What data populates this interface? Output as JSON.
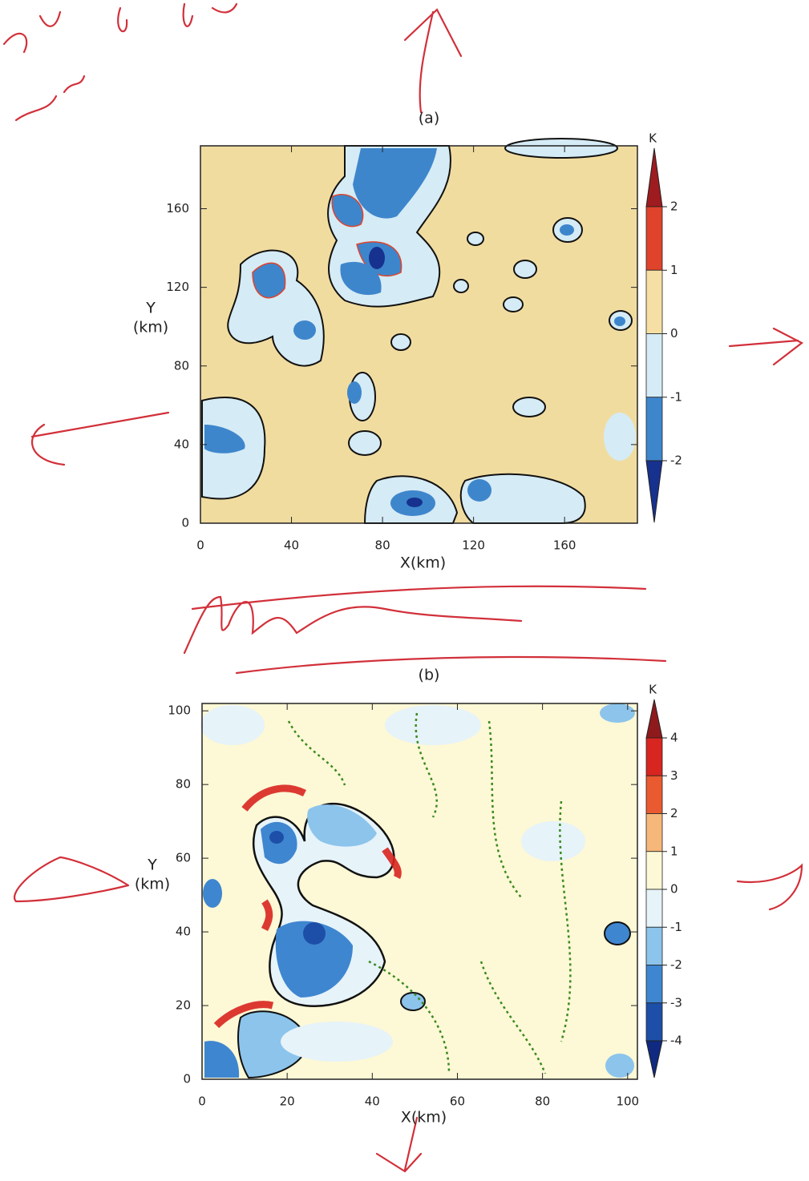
{
  "figures": [
    {
      "label": "(a)",
      "x_label": "X(km)",
      "y_label": [
        "Y",
        "(km)"
      ],
      "xlim": [
        0,
        192
      ],
      "ylim": [
        0,
        192
      ],
      "xticks": [
        0,
        40,
        80,
        120,
        160
      ],
      "yticks": [
        0,
        40,
        80,
        120,
        160
      ],
      "background": "#f1dca0",
      "colorbar": {
        "unit": "K",
        "ticks": [
          2,
          1,
          0,
          -1,
          -2
        ],
        "colors": [
          "#9e1b1f",
          "#e0432b",
          "#f6dfa4",
          "#d5ebf5",
          "#3e86cc",
          "#17318f"
        ]
      }
    },
    {
      "label": "(b)",
      "x_label": "X(km)",
      "y_label": [
        "Y",
        "(km)"
      ],
      "xlim": [
        0,
        102.3
      ],
      "ylim": [
        0,
        102
      ],
      "xticks": [
        0,
        20,
        40,
        60,
        80,
        100
      ],
      "yticks": [
        0,
        20,
        40,
        60,
        80,
        100
      ],
      "background": "#fdf8d6",
      "colorbar": {
        "unit": "K",
        "ticks": [
          4,
          3,
          2,
          1,
          0,
          -1,
          -2,
          -3,
          -4
        ],
        "colors": [
          "#8e1a1c",
          "#d8251f",
          "#ea5a30",
          "#f6b77a",
          "#fdf8d6",
          "#e6f3f9",
          "#8cc4ec",
          "#3f86d0",
          "#1d4fa8",
          "#0f2a80"
        ]
      }
    }
  ]
}
